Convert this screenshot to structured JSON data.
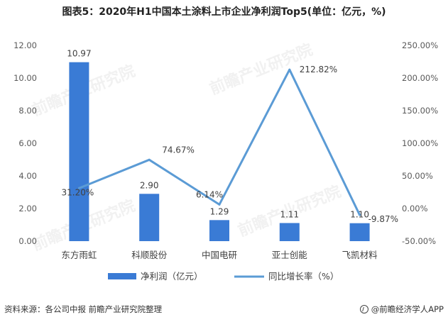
{
  "header": {
    "title": "图表5：2020年H1中国本土涂料上市企业净利润Top5(单位：亿元，%)"
  },
  "footer": {
    "source": "资料来源：各公司中报 前瞻产业研究院整理",
    "brand": "@前瞻经济学人APP"
  },
  "watermark": {
    "text": "前瞻产业研究院"
  },
  "chart_data": {
    "type": "bar",
    "categories": [
      "东方雨虹",
      "科顺股份",
      "中国电研",
      "亚士创能",
      "飞凯材料"
    ],
    "series": [
      {
        "name": "净利润（亿元）",
        "type": "bar",
        "axis": "left",
        "values": [
          10.97,
          2.9,
          1.29,
          1.11,
          1.1
        ],
        "labels": [
          "10.97",
          "2.90",
          "1.29",
          "1.11",
          "1.10"
        ],
        "color": "#3a7bd5"
      },
      {
        "name": "同比增长率（%）",
        "type": "line",
        "axis": "right",
        "values": [
          31.2,
          74.67,
          6.14,
          212.82,
          -9.87
        ],
        "labels": [
          "31.20%",
          "74.67%",
          "6.14%",
          "212.82%",
          "-9.87%"
        ],
        "color": "#5b9bd5"
      }
    ],
    "left_axis": {
      "ylim": [
        0,
        12
      ],
      "ticks": [
        "0.00",
        "2.00",
        "4.00",
        "6.00",
        "8.00",
        "10.00",
        "12.00"
      ]
    },
    "right_axis": {
      "ylim": [
        -50,
        250
      ],
      "ticks": [
        "-50.00%",
        "0.00%",
        "50.00%",
        "100.00%",
        "150.00%",
        "200.00%",
        "250.00%"
      ]
    },
    "legend": {
      "position": "bottom"
    },
    "grid": false
  }
}
